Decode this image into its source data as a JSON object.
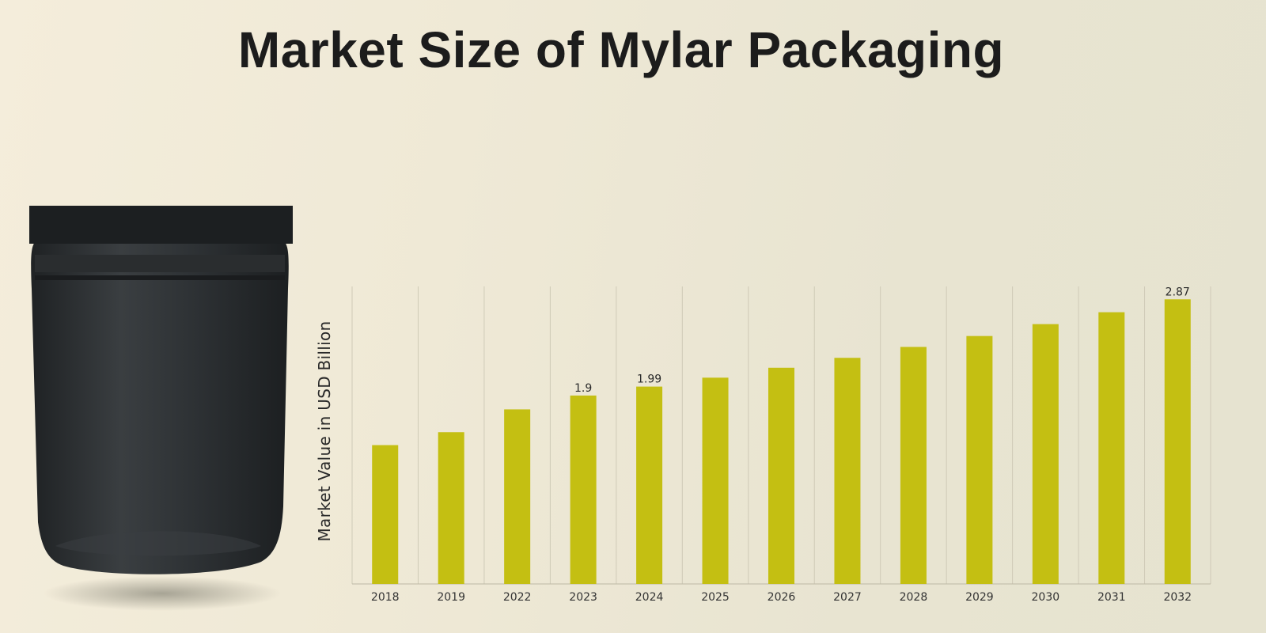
{
  "page": {
    "title": "Market Size of Mylar Packaging"
  },
  "image": {
    "subject": "pouch-icon",
    "pouch_color": "#2b2e30"
  },
  "chart_data": {
    "type": "bar",
    "title": "Market Size of Mylar Packaging",
    "xlabel": "",
    "ylabel": "Market Value in USD Billion",
    "categories": [
      "2018",
      "2019",
      "2022",
      "2023",
      "2024",
      "2025",
      "2026",
      "2027",
      "2028",
      "2029",
      "2030",
      "2031",
      "2032"
    ],
    "values": [
      1.4,
      1.53,
      1.76,
      1.9,
      1.99,
      2.08,
      2.18,
      2.28,
      2.39,
      2.5,
      2.62,
      2.74,
      2.87
    ],
    "data_labels": {
      "3": "1.9",
      "4": "1.99",
      "12": "2.87"
    },
    "ylim": [
      0,
      3.0
    ],
    "grid": "vertical",
    "bar_color": "#c4bf12",
    "legend": "none"
  }
}
